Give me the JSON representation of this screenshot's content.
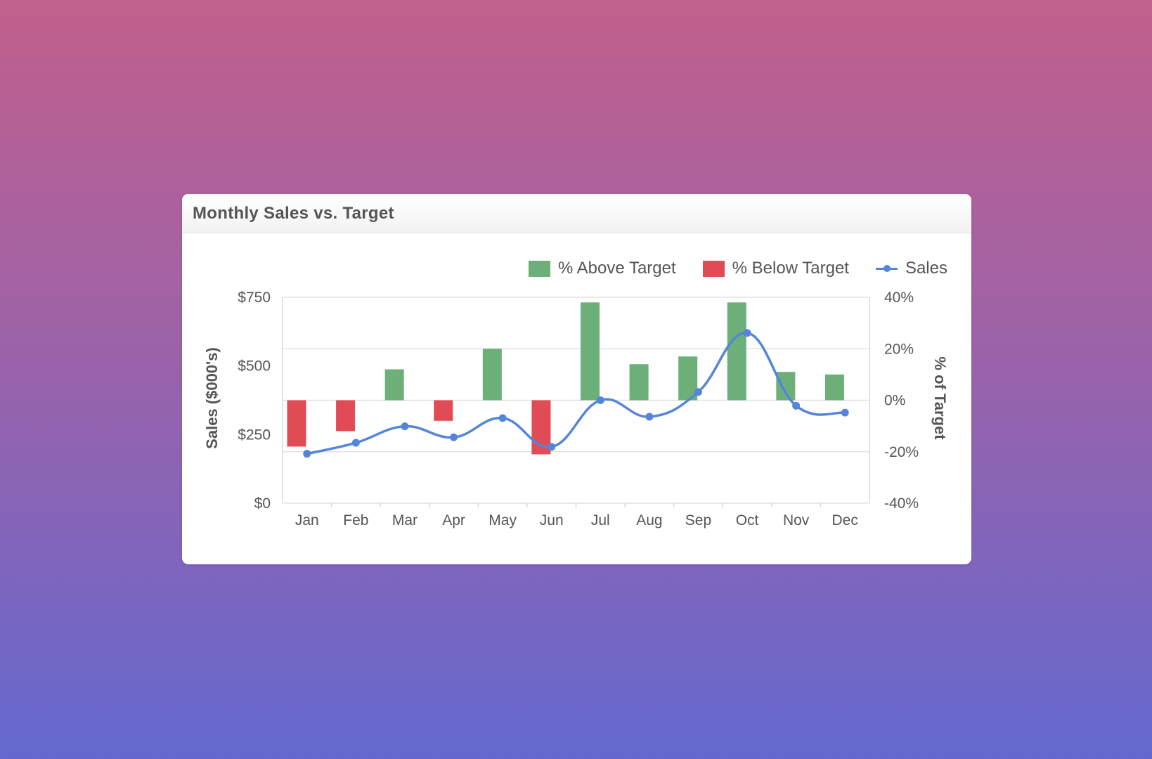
{
  "card": {
    "title": "Monthly Sales vs. Target"
  },
  "legend": {
    "items": [
      {
        "label": "% Above Target",
        "type": "bar",
        "color": "#6caf78"
      },
      {
        "label": "% Below Target",
        "type": "bar",
        "color": "#e04b56"
      },
      {
        "label": "Sales",
        "type": "line",
        "color": "#5585d9"
      }
    ]
  },
  "colors": {
    "above": "#6caf78",
    "below": "#e04b56",
    "line": "#5585d9",
    "grid": "#e2e2e2",
    "axis_text": "#555555",
    "background_top": "#c1608c",
    "background_bottom": "#6468cf"
  },
  "chart_data": {
    "type": "bar+line",
    "title": "Monthly Sales vs. Target",
    "categories": [
      "Jan",
      "Feb",
      "Mar",
      "Apr",
      "May",
      "Jun",
      "Jul",
      "Aug",
      "Sep",
      "Oct",
      "Nov",
      "Dec"
    ],
    "series": [
      {
        "name": "% Above Target",
        "type": "bar",
        "axis": "right",
        "values": [
          null,
          null,
          12,
          null,
          20,
          null,
          38,
          14,
          17,
          38,
          11,
          10
        ]
      },
      {
        "name": "% Below Target",
        "type": "bar",
        "axis": "right",
        "values": [
          -18,
          -12,
          null,
          -8,
          null,
          -21,
          null,
          null,
          null,
          null,
          null,
          null
        ]
      },
      {
        "name": "Sales",
        "type": "line",
        "axis": "left",
        "smooth": true,
        "markers": true,
        "values": [
          180,
          220,
          280,
          240,
          310,
          205,
          375,
          315,
          405,
          620,
          355,
          330
        ]
      }
    ],
    "xlabel": "",
    "ylabel": "Sales ($000's)",
    "y2label": "% of Target",
    "ylim": [
      0,
      750
    ],
    "y2lim": [
      -40,
      40
    ],
    "yticks": [
      "$0",
      "$250",
      "$500",
      "$750"
    ],
    "y2ticks": [
      "-40%",
      "-20%",
      "0%",
      "20%",
      "40%"
    ],
    "grid": true,
    "legend_position": "top-right"
  }
}
